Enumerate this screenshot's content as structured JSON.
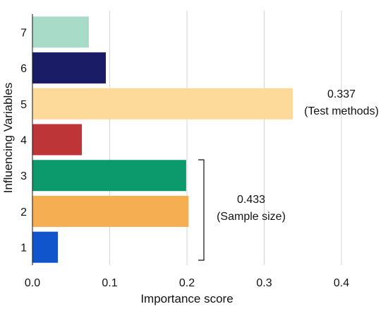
{
  "chart_data": {
    "type": "bar",
    "orientation": "horizontal",
    "title": "",
    "xlabel": "Importance score",
    "ylabel": "Influencing Variables",
    "categories": [
      "1",
      "2",
      "3",
      "4",
      "5",
      "6",
      "7"
    ],
    "values": [
      0.033,
      0.202,
      0.199,
      0.064,
      0.337,
      0.095,
      0.073
    ],
    "colors": [
      "#1155cc",
      "#f6ae52",
      "#0c9a6c",
      "#be3538",
      "#fdd99a",
      "#1a1d66",
      "#a8dcc8"
    ],
    "xlim": [
      0.0,
      0.4
    ],
    "xticks": [
      "0.0",
      "0.1",
      "0.2",
      "0.3",
      "0.4"
    ],
    "grid": "vertical",
    "legend": "none",
    "annotations": [
      {
        "target": "5",
        "value": "0.337",
        "label": "(Test methods)"
      },
      {
        "target_range": [
          "2",
          "3"
        ],
        "value": "0.433",
        "label": "(Sample size)"
      }
    ]
  }
}
